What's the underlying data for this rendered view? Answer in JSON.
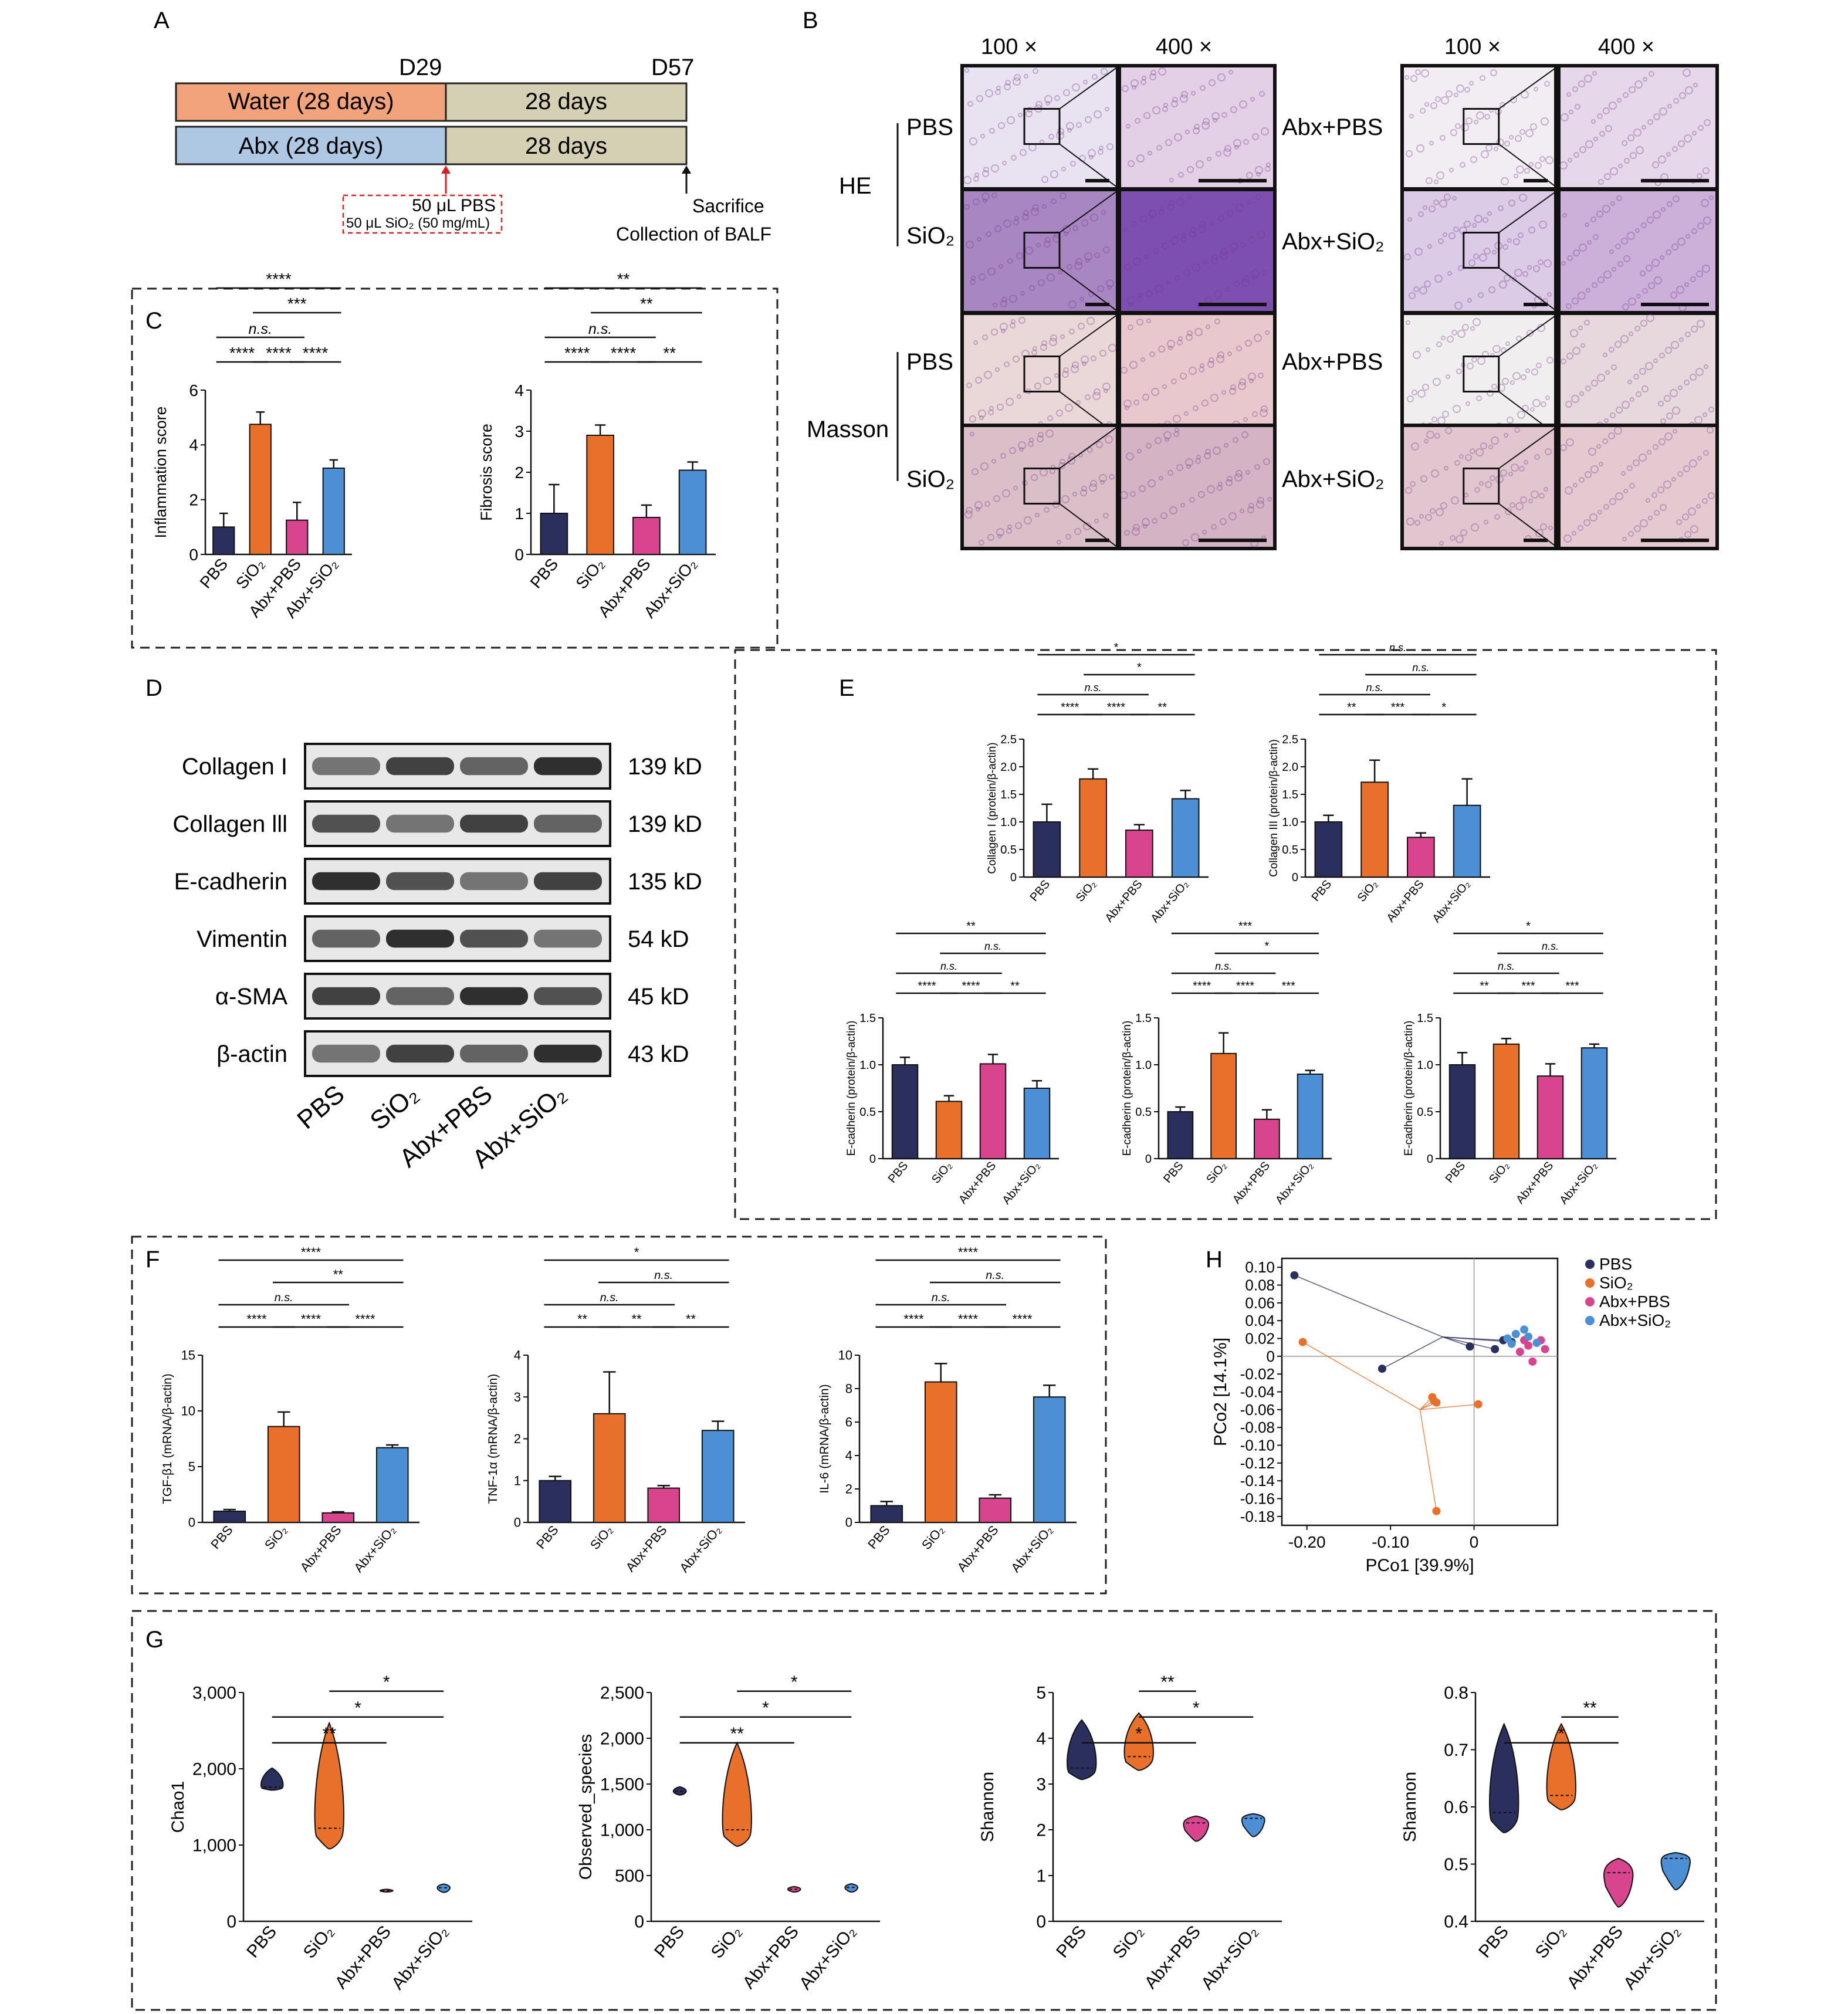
{
  "palette": {
    "PBS": "#2b2f5e",
    "SiO2": "#e8702a",
    "AbxPBS": "#d9448f",
    "AbxSiO2": "#4c8fd4"
  },
  "groups": [
    "PBS",
    "SiO₂",
    "Abx+PBS",
    "Abx+SiO₂"
  ],
  "panelA": {
    "label": "A",
    "d29": "D29",
    "d57": "D57",
    "water": "Water (28 days)",
    "abx": "Abx (28 days)",
    "days": "28 days",
    "pbs": "50 μL PBS",
    "sio2": "50 μL SiO₂ (50 mg/mL)",
    "sacrifice": "Sacrifice",
    "balf": "Collection of BALF"
  },
  "panelB": {
    "label": "B",
    "mag100": "100 ×",
    "mag400": "400 ×",
    "he": "HE",
    "masson": "Masson",
    "pbs": "PBS",
    "sio2": "SiO₂",
    "abxpbs": "Abx+PBS",
    "abxsio2": "Abx+SiO₂"
  },
  "panelC": {
    "label": "C"
  },
  "panelD": {
    "label": "D",
    "proteins": [
      "Collagen I",
      "Collagen lll",
      "E-cadherin",
      "Vimentin",
      "α-SMA",
      "β-actin"
    ],
    "sizes": [
      "139 kD",
      "139 kD",
      "135 kD",
      "54 kD",
      "45 kD",
      "43 kD"
    ],
    "lanes": [
      "PBS",
      "SiO₂",
      "Abx+PBS",
      "Abx+SiO₂"
    ]
  },
  "panelE": {
    "label": "E"
  },
  "panelF": {
    "label": "F"
  },
  "panelG": {
    "label": "G"
  },
  "chart_data": [
    {
      "id": "C1",
      "type": "bar",
      "ylabel": "Inflammation score",
      "ylim": [
        0,
        6
      ],
      "yticks": [
        "0",
        "2",
        "4",
        "6"
      ],
      "values": [
        1.0,
        4.75,
        1.25,
        3.15
      ],
      "errors": [
        0.5,
        0.45,
        0.65,
        0.3
      ],
      "sig": [
        {
          "a": 0,
          "b": 1,
          "t": "****",
          "lvl": 0
        },
        {
          "a": 1,
          "b": 2,
          "t": "****",
          "lvl": 0
        },
        {
          "a": 2,
          "b": 3,
          "t": "****",
          "lvl": 0
        },
        {
          "a": 0,
          "b": 2,
          "t": "n.s.",
          "lvl": 1
        },
        {
          "a": 1,
          "b": 3,
          "t": "***",
          "lvl": 2
        },
        {
          "a": 0,
          "b": 3,
          "t": "****",
          "lvl": 3
        }
      ]
    },
    {
      "id": "C2",
      "type": "bar",
      "ylabel": "Fibrosis score",
      "ylim": [
        0,
        4
      ],
      "yticks": [
        "0",
        "1",
        "2",
        "3",
        "4"
      ],
      "values": [
        1.0,
        2.9,
        0.9,
        2.05
      ],
      "errors": [
        0.7,
        0.25,
        0.3,
        0.2
      ],
      "sig": [
        {
          "a": 0,
          "b": 1,
          "t": "****",
          "lvl": 0
        },
        {
          "a": 1,
          "b": 2,
          "t": "****",
          "lvl": 0
        },
        {
          "a": 2,
          "b": 3,
          "t": "**",
          "lvl": 0
        },
        {
          "a": 0,
          "b": 2,
          "t": "n.s.",
          "lvl": 1
        },
        {
          "a": 1,
          "b": 3,
          "t": "**",
          "lvl": 2
        },
        {
          "a": 0,
          "b": 3,
          "t": "**",
          "lvl": 3
        }
      ]
    },
    {
      "id": "E1",
      "type": "bar",
      "ylabel": "Collagen I (protein/β-actin)",
      "ylim": [
        0,
        2.5
      ],
      "yticks": [
        "0",
        "0.5",
        "1.0",
        "1.5",
        "2.0",
        "2.5"
      ],
      "values": [
        1.0,
        1.78,
        0.85,
        1.42
      ],
      "errors": [
        0.32,
        0.18,
        0.1,
        0.15
      ],
      "sig": [
        {
          "a": 0,
          "b": 1,
          "t": "****",
          "lvl": 0
        },
        {
          "a": 1,
          "b": 2,
          "t": "****",
          "lvl": 0
        },
        {
          "a": 2,
          "b": 3,
          "t": "**",
          "lvl": 0
        },
        {
          "a": 0,
          "b": 2,
          "t": "n.s.",
          "lvl": 1
        },
        {
          "a": 1,
          "b": 3,
          "t": "*",
          "lvl": 2
        },
        {
          "a": 0,
          "b": 3,
          "t": "*",
          "lvl": 3
        }
      ]
    },
    {
      "id": "E2",
      "type": "bar",
      "ylabel": "Collagen III (protein/β-actin)",
      "ylim": [
        0,
        2.5
      ],
      "yticks": [
        "0",
        "0.5",
        "1.0",
        "1.5",
        "2.0",
        "2.5"
      ],
      "values": [
        1.0,
        1.72,
        0.72,
        1.3
      ],
      "errors": [
        0.12,
        0.4,
        0.08,
        0.48
      ],
      "sig": [
        {
          "a": 0,
          "b": 1,
          "t": "**",
          "lvl": 0
        },
        {
          "a": 1,
          "b": 2,
          "t": "***",
          "lvl": 0
        },
        {
          "a": 2,
          "b": 3,
          "t": "*",
          "lvl": 0
        },
        {
          "a": 0,
          "b": 2,
          "t": "n.s.",
          "lvl": 1
        },
        {
          "a": 1,
          "b": 3,
          "t": "n.s.",
          "lvl": 2
        },
        {
          "a": 0,
          "b": 3,
          "t": "n.s.",
          "lvl": 3
        }
      ]
    },
    {
      "id": "E3",
      "type": "bar",
      "ylabel": "E-cadherin (protein/β-actin)",
      "ylim": [
        0,
        1.5
      ],
      "yticks": [
        "0",
        "0.5",
        "1.0",
        "1.5"
      ],
      "values": [
        1.0,
        0.61,
        1.01,
        0.75
      ],
      "errors": [
        0.08,
        0.06,
        0.1,
        0.08
      ],
      "sig": [
        {
          "a": 0,
          "b": 1,
          "t": "****",
          "lvl": 0
        },
        {
          "a": 1,
          "b": 2,
          "t": "****",
          "lvl": 0
        },
        {
          "a": 2,
          "b": 3,
          "t": "**",
          "lvl": 0
        },
        {
          "a": 0,
          "b": 2,
          "t": "n.s.",
          "lvl": 1
        },
        {
          "a": 1,
          "b": 3,
          "t": "n.s.",
          "lvl": 2
        },
        {
          "a": 0,
          "b": 3,
          "t": "**",
          "lvl": 3
        }
      ]
    },
    {
      "id": "E4",
      "type": "bar",
      "ylabel": "E-cadherin (protein/β-actin)",
      "ylim": [
        0,
        1.5
      ],
      "yticks": [
        "0",
        "0.5",
        "1.0",
        "1.5"
      ],
      "values": [
        0.5,
        1.12,
        0.42,
        0.9
      ],
      "errors": [
        0.05,
        0.22,
        0.1,
        0.04
      ],
      "sig": [
        {
          "a": 0,
          "b": 1,
          "t": "****",
          "lvl": 0
        },
        {
          "a": 1,
          "b": 2,
          "t": "****",
          "lvl": 0
        },
        {
          "a": 2,
          "b": 3,
          "t": "***",
          "lvl": 0
        },
        {
          "a": 0,
          "b": 2,
          "t": "n.s.",
          "lvl": 1
        },
        {
          "a": 1,
          "b": 3,
          "t": "*",
          "lvl": 2
        },
        {
          "a": 0,
          "b": 3,
          "t": "***",
          "lvl": 3
        }
      ]
    },
    {
      "id": "E5",
      "type": "bar",
      "ylabel": "E-cadherin (protein/β-actin)",
      "ylim": [
        0,
        1.5
      ],
      "yticks": [
        "0",
        "0.5",
        "1.0",
        "1.5"
      ],
      "values": [
        1.0,
        1.22,
        0.88,
        1.18
      ],
      "errors": [
        0.13,
        0.06,
        0.13,
        0.04
      ],
      "sig": [
        {
          "a": 0,
          "b": 1,
          "t": "**",
          "lvl": 0
        },
        {
          "a": 1,
          "b": 2,
          "t": "***",
          "lvl": 0
        },
        {
          "a": 2,
          "b": 3,
          "t": "***",
          "lvl": 0
        },
        {
          "a": 0,
          "b": 2,
          "t": "n.s.",
          "lvl": 1
        },
        {
          "a": 1,
          "b": 3,
          "t": "n.s.",
          "lvl": 2
        },
        {
          "a": 0,
          "b": 3,
          "t": "*",
          "lvl": 3
        }
      ]
    },
    {
      "id": "F1",
      "type": "bar",
      "ylabel": "TGF-β1 (mRNA/β-actin)",
      "ylim": [
        0,
        15
      ],
      "yticks": [
        "0",
        "5",
        "10",
        "15"
      ],
      "values": [
        1.0,
        8.6,
        0.85,
        6.7
      ],
      "errors": [
        0.15,
        1.3,
        0.1,
        0.25
      ],
      "sig": [
        {
          "a": 0,
          "b": 1,
          "t": "****",
          "lvl": 0
        },
        {
          "a": 1,
          "b": 2,
          "t": "****",
          "lvl": 0
        },
        {
          "a": 2,
          "b": 3,
          "t": "****",
          "lvl": 0
        },
        {
          "a": 0,
          "b": 2,
          "t": "n.s.",
          "lvl": 1
        },
        {
          "a": 1,
          "b": 3,
          "t": "**",
          "lvl": 2
        },
        {
          "a": 0,
          "b": 3,
          "t": "****",
          "lvl": 3
        }
      ]
    },
    {
      "id": "F2",
      "type": "bar",
      "ylabel": "TNF-1α (mRNA/β-actin)",
      "ylim": [
        0,
        4
      ],
      "yticks": [
        "0",
        "1",
        "2",
        "3",
        "4"
      ],
      "values": [
        1.0,
        2.6,
        0.82,
        2.2
      ],
      "errors": [
        0.1,
        1.0,
        0.06,
        0.22
      ],
      "sig": [
        {
          "a": 0,
          "b": 1,
          "t": "**",
          "lvl": 0
        },
        {
          "a": 1,
          "b": 2,
          "t": "**",
          "lvl": 0
        },
        {
          "a": 2,
          "b": 3,
          "t": "**",
          "lvl": 0
        },
        {
          "a": 0,
          "b": 2,
          "t": "n.s.",
          "lvl": 1
        },
        {
          "a": 1,
          "b": 3,
          "t": "n.s.",
          "lvl": 2
        },
        {
          "a": 0,
          "b": 3,
          "t": "*",
          "lvl": 3
        }
      ]
    },
    {
      "id": "F3",
      "type": "bar",
      "ylabel": "IL-6 (mRNA/β-actin)",
      "ylim": [
        0,
        10
      ],
      "yticks": [
        "0",
        "2",
        "4",
        "6",
        "8",
        "10"
      ],
      "values": [
        1.0,
        8.4,
        1.45,
        7.5
      ],
      "errors": [
        0.25,
        1.1,
        0.2,
        0.7
      ],
      "sig": [
        {
          "a": 0,
          "b": 1,
          "t": "****",
          "lvl": 0
        },
        {
          "a": 1,
          "b": 2,
          "t": "****",
          "lvl": 0
        },
        {
          "a": 2,
          "b": 3,
          "t": "****",
          "lvl": 0
        },
        {
          "a": 0,
          "b": 2,
          "t": "n.s.",
          "lvl": 1
        },
        {
          "a": 1,
          "b": 3,
          "t": "n.s.",
          "lvl": 2
        },
        {
          "a": 0,
          "b": 3,
          "t": "****",
          "lvl": 3
        }
      ]
    },
    {
      "id": "H",
      "type": "scatter",
      "title": "",
      "xlabel": "PCo1 [39.9%]",
      "ylabel": "PCo2 [14.1%]",
      "xlim": [
        -0.23,
        0.1
      ],
      "ylim": [
        -0.19,
        0.11
      ],
      "xticks": [
        "-0.20",
        "-0.10",
        "0"
      ],
      "yticks": [
        "0.10",
        "0.08",
        "0.06",
        "0.04",
        "0.02",
        "0",
        "-0.02",
        "-0.04",
        "-0.06",
        "-0.08",
        "-0.10",
        "-0.12",
        "-0.14",
        "-0.16",
        "-0.18"
      ],
      "legend": [
        "PBS",
        "SiO₂",
        "Abx+PBS",
        "Abx+SiO₂"
      ],
      "series": [
        {
          "name": "PBS",
          "points": [
            [
              -0.215,
              0.091
            ],
            [
              -0.11,
              -0.014
            ],
            [
              -0.005,
              0.011
            ],
            [
              0.025,
              0.008
            ],
            [
              0.035,
              0.018
            ],
            [
              0.045,
              0.016
            ]
          ]
        },
        {
          "name": "SiO₂",
          "points": [
            [
              -0.205,
              0.016
            ],
            [
              -0.05,
              -0.046
            ],
            [
              -0.048,
              -0.05
            ],
            [
              -0.045,
              -0.052
            ],
            [
              0.005,
              -0.054
            ],
            [
              -0.045,
              -0.174
            ]
          ]
        },
        {
          "name": "Abx+PBS",
          "points": [
            [
              0.06,
              0.018
            ],
            [
              0.065,
              0.012
            ],
            [
              0.07,
              -0.006
            ],
            [
              0.08,
              0.018
            ],
            [
              0.085,
              0.008
            ],
            [
              0.055,
              0.005
            ]
          ]
        },
        {
          "name": "Abx+SiO₂",
          "points": [
            [
              0.04,
              0.02
            ],
            [
              0.05,
              0.025
            ],
            [
              0.06,
              0.03
            ],
            [
              0.065,
              0.022
            ],
            [
              0.075,
              0.015
            ],
            [
              0.045,
              0.014
            ]
          ]
        }
      ]
    },
    {
      "id": "G1",
      "type": "violin",
      "ylabel": "Chao1",
      "ylim": [
        0,
        3000
      ],
      "yticks": [
        "0",
        "1,000",
        "2,000",
        "3,000"
      ],
      "medians": [
        1760,
        1220,
        400,
        440
      ],
      "min": [
        1720,
        950,
        385,
        380
      ],
      "max": [
        2010,
        2600,
        420,
        490
      ],
      "sig": [
        {
          "a": 0,
          "b": 2,
          "t": "**",
          "lvl": 0
        },
        {
          "a": 0,
          "b": 3,
          "t": "*",
          "lvl": 1
        },
        {
          "a": 1,
          "b": 3,
          "t": "*",
          "lvl": 2
        }
      ]
    },
    {
      "id": "G2",
      "type": "violin",
      "ylabel": "Observed_species",
      "ylim": [
        0,
        2500
      ],
      "yticks": [
        "0",
        "500",
        "1,000",
        "1,500",
        "2,000",
        "2,500"
      ],
      "medians": [
        1420,
        1000,
        350,
        370
      ],
      "min": [
        1380,
        820,
        320,
        320
      ],
      "max": [
        1470,
        1950,
        380,
        410
      ],
      "sig": [
        {
          "a": 0,
          "b": 2,
          "t": "**",
          "lvl": 0
        },
        {
          "a": 0,
          "b": 3,
          "t": "*",
          "lvl": 1
        },
        {
          "a": 1,
          "b": 3,
          "t": "*",
          "lvl": 2
        }
      ]
    },
    {
      "id": "G3",
      "type": "violin",
      "ylabel": "Shannon",
      "ylim": [
        0,
        5
      ],
      "yticks": [
        "0",
        "1",
        "2",
        "3",
        "4",
        "5"
      ],
      "medians": [
        3.35,
        3.6,
        2.15,
        2.25
      ],
      "min": [
        3.1,
        3.3,
        1.75,
        1.85
      ],
      "max": [
        4.4,
        4.55,
        2.3,
        2.35
      ],
      "sig": [
        {
          "a": 0,
          "b": 2,
          "t": "*",
          "lvl": 0
        },
        {
          "a": 1,
          "b": 3,
          "t": "*",
          "lvl": 1
        },
        {
          "a": 1,
          "b": 2,
          "t": "**",
          "lvl": 2
        }
      ]
    },
    {
      "id": "G4",
      "type": "violin",
      "ylabel": "Shannon",
      "ylim": [
        0.4,
        0.8
      ],
      "yticks": [
        "0.4",
        "0.5",
        "0.6",
        "0.7",
        "0.8"
      ],
      "medians": [
        0.59,
        0.62,
        0.485,
        0.51
      ],
      "min": [
        0.555,
        0.595,
        0.425,
        0.455
      ],
      "max": [
        0.745,
        0.745,
        0.51,
        0.52
      ],
      "sig": [
        {
          "a": 0,
          "b": 2,
          "t": "*",
          "lvl": 0
        },
        {
          "a": 1,
          "b": 2,
          "t": "**",
          "lvl": 1
        }
      ]
    }
  ]
}
